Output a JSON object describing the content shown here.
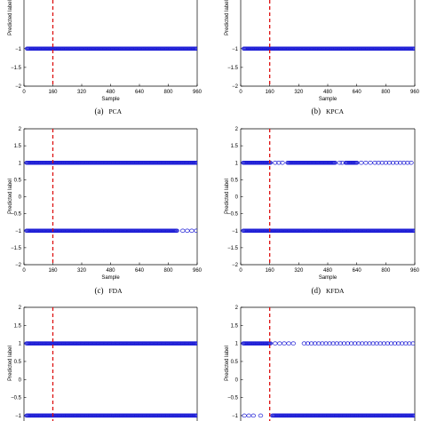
{
  "colors": {
    "marker": "#1f1fd6",
    "threshold": "#dd1111",
    "axis": "#000000"
  },
  "chart_data": [
    {
      "type": "scatter",
      "caption": {
        "letter": "(a)",
        "name": "PCA"
      },
      "xlabel": "Sample",
      "ylabel": "Predicted label",
      "xticks": [
        0,
        160,
        320,
        480,
        640,
        800,
        960
      ],
      "yticks": [
        -2,
        -1.5,
        -1
      ],
      "xlim": [
        0,
        960
      ],
      "ylim": [
        -2,
        2
      ],
      "threshold_x": 160,
      "series": [
        {
          "y": -1,
          "dense": [
            [
              18,
              960
            ]
          ],
          "sparse": []
        }
      ]
    },
    {
      "type": "scatter",
      "caption": {
        "letter": "(b)",
        "name": "KPCA"
      },
      "xlabel": "Sample",
      "ylabel": "Predicted label",
      "xticks": [
        0,
        160,
        320,
        480,
        640,
        800,
        960
      ],
      "yticks": [
        -2,
        -1.5,
        -1
      ],
      "xlim": [
        0,
        960
      ],
      "ylim": [
        -2,
        2
      ],
      "threshold_x": 160,
      "series": [
        {
          "y": -1,
          "dense": [
            [
              18,
              960
            ]
          ],
          "sparse": []
        }
      ]
    },
    {
      "type": "scatter",
      "caption": {
        "letter": "(c)",
        "name": "FDA"
      },
      "xlabel": "Sample",
      "ylabel": "Predicted label",
      "xticks": [
        0,
        160,
        320,
        480,
        640,
        800,
        960
      ],
      "yticks": [
        -2,
        -1.5,
        -1,
        -0.5,
        0,
        0.5,
        1,
        1.5,
        2
      ],
      "xlim": [
        0,
        960
      ],
      "ylim": [
        -2,
        2
      ],
      "threshold_x": 160,
      "series": [
        {
          "y": 1,
          "dense": [
            [
              15,
              960
            ]
          ],
          "sparse": []
        },
        {
          "y": -1,
          "dense": [
            [
              15,
              850
            ]
          ],
          "sparse": [
            880,
            905,
            930,
            955
          ]
        }
      ]
    },
    {
      "type": "scatter",
      "caption": {
        "letter": "(d)",
        "name": "KFDA"
      },
      "xlabel": "Sample",
      "ylabel": "Predicted label",
      "xticks": [
        0,
        160,
        320,
        480,
        640,
        800,
        960
      ],
      "yticks": [
        -2,
        -1.5,
        -1,
        -0.5,
        0,
        0.5,
        1,
        1.5,
        2
      ],
      "xlim": [
        0,
        960
      ],
      "ylim": [
        -2,
        2
      ],
      "threshold_x": 160,
      "series": [
        {
          "y": 1,
          "dense": [
            [
              15,
              165
            ],
            [
              260,
              520
            ],
            [
              580,
              640
            ]
          ],
          "sparse": [
            190,
            210,
            230,
            545,
            560,
            665,
            690,
            715,
            740,
            760,
            780,
            800,
            820,
            840,
            860,
            880,
            900,
            920,
            940
          ]
        },
        {
          "y": -1,
          "dense": [
            [
              15,
              960
            ]
          ],
          "sparse": []
        }
      ]
    },
    {
      "type": "scatter",
      "caption": {
        "letter": "",
        "name": ""
      },
      "xlabel": "",
      "ylabel": "Predicted label",
      "xticks": [],
      "yticks": [
        -1,
        -0.5,
        0,
        0.5,
        1,
        1.5,
        2
      ],
      "xlim": [
        0,
        960
      ],
      "ylim": [
        -1.1,
        2
      ],
      "threshold_x": 160,
      "series": [
        {
          "y": 1,
          "dense": [
            [
              15,
              960
            ]
          ],
          "sparse": []
        },
        {
          "y": -1,
          "dense": [
            [
              15,
              960
            ]
          ],
          "sparse": []
        }
      ]
    },
    {
      "type": "scatter",
      "caption": {
        "letter": "",
        "name": ""
      },
      "xlabel": "",
      "ylabel": "Predicted label",
      "xticks": [],
      "yticks": [
        -1,
        -0.5,
        0,
        0.5,
        1,
        1.5,
        2
      ],
      "xlim": [
        0,
        960
      ],
      "ylim": [
        -1.1,
        2
      ],
      "threshold_x": 160,
      "series": [
        {
          "y": 1,
          "dense": [
            [
              15,
              165
            ]
          ],
          "sparse": [
            190,
            215,
            240,
            265,
            290,
            350,
            370,
            390,
            410,
            430,
            450,
            470,
            490,
            510,
            530,
            550,
            570,
            590,
            610,
            630,
            650,
            670,
            690,
            710,
            730,
            750,
            770,
            790,
            810,
            830,
            850,
            870,
            890,
            910,
            930,
            950
          ]
        },
        {
          "y": -1,
          "dense": [
            [
              175,
              960
            ]
          ],
          "sparse": [
            20,
            45,
            70,
            110
          ]
        }
      ]
    }
  ]
}
